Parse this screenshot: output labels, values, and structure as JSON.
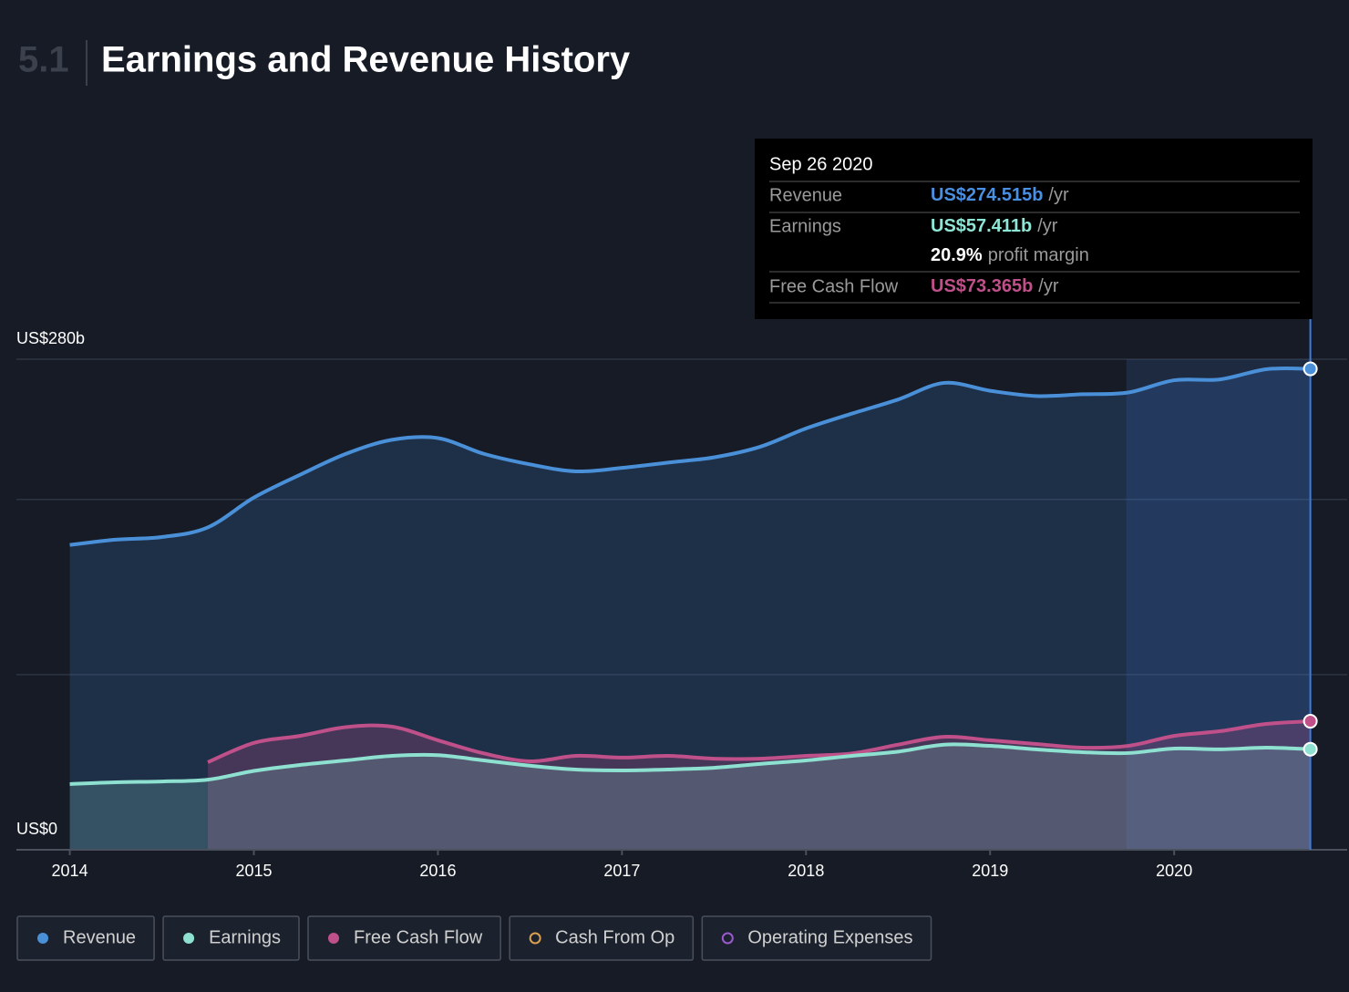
{
  "chart_data": {
    "type": "line",
    "section": "5.1",
    "title": "Earnings and Revenue History",
    "x": [
      2014,
      2014.25,
      2014.5,
      2014.75,
      2015,
      2015.25,
      2015.5,
      2015.75,
      2016,
      2016.25,
      2016.5,
      2016.75,
      2017,
      2017.25,
      2017.5,
      2017.75,
      2018,
      2018.25,
      2018.5,
      2018.75,
      2019,
      2019.25,
      2019.5,
      2019.75,
      2020,
      2020.25,
      2020.5,
      2020.74
    ],
    "series": [
      {
        "name": "Revenue",
        "color": "#4a90d9",
        "values": [
          174,
          177,
          178.5,
          184,
          201,
          214,
          226,
          234,
          235,
          226,
          220,
          216,
          218,
          221,
          224,
          230,
          240.5,
          249,
          257,
          266.5,
          262,
          259,
          260,
          261,
          268,
          268.5,
          274.3,
          274.515
        ]
      },
      {
        "name": "Earnings",
        "color": "#8ee0d0",
        "values": [
          37.5,
          38.5,
          39,
          40,
          45,
          48.4,
          51,
          53.6,
          54,
          51,
          48,
          45.8,
          45.3,
          45.8,
          46.8,
          49,
          51,
          53.6,
          56,
          60,
          59.3,
          57.3,
          55.7,
          55.2,
          57.8,
          57.3,
          58.3,
          57.411
        ]
      },
      {
        "name": "Free Cash Flow",
        "color": "#c0508a",
        "values": [
          null,
          null,
          null,
          50,
          61,
          65,
          70,
          70.3,
          62.5,
          55,
          50.5,
          53.6,
          52.6,
          53.6,
          52,
          52,
          53.6,
          55,
          60,
          64.5,
          62.5,
          60.4,
          58.3,
          59.3,
          65,
          67.7,
          71.8,
          73.365
        ]
      }
    ],
    "inactive_series": [
      {
        "name": "Cash From Op",
        "color": "#d9a050"
      },
      {
        "name": "Operating Expenses",
        "color": "#9b59d0"
      }
    ],
    "xlim": [
      2013.71,
      2020.94
    ],
    "xticks": [
      2014,
      2015,
      2016,
      2017,
      2018,
      2019,
      2020
    ],
    "ylim": [
      0,
      280
    ],
    "yticks": [
      {
        "value": 0,
        "label": "US$0"
      },
      {
        "value": 280,
        "label": "US$280b"
      }
    ],
    "ygrid": [
      100,
      200,
      280
    ],
    "highlight": [
      2019.74,
      2020.74
    ],
    "tooltip": {
      "date": "Sep 26 2020",
      "rows": [
        {
          "label": "Revenue",
          "value": "US$274.515b",
          "unit": "/yr",
          "color": "#4a90e2"
        },
        {
          "label": "Earnings",
          "value": "US$57.411b",
          "unit": "/yr",
          "color": "#8ee6d6"
        },
        {
          "value": "20.9%",
          "unit": "profit margin",
          "color": "#ffffff"
        },
        {
          "label": "Free Cash Flow",
          "value": "US$73.365b",
          "unit": "/yr",
          "color": "#c0508a"
        }
      ]
    }
  }
}
